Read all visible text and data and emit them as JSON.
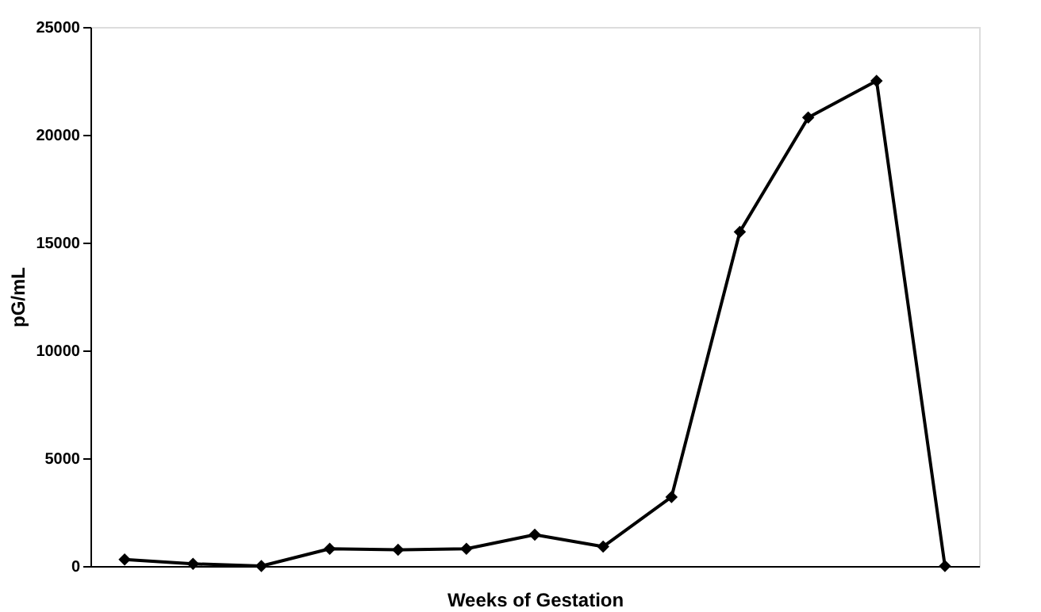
{
  "chart_data": {
    "type": "line",
    "xlabel": "Weeks of Gestation",
    "ylabel": "pG/mL",
    "categories": [
      null,
      null,
      null,
      null,
      null,
      null,
      null,
      null,
      null,
      null,
      null,
      null,
      null
    ],
    "series": [
      {
        "color": "#000000",
        "values": [
          300,
          100,
          0,
          800,
          750,
          800,
          1450,
          900,
          3200,
          15500,
          20800,
          22500,
          0
        ]
      }
    ],
    "ylim": [
      0,
      25000
    ],
    "yticks": [
      0,
      5000,
      10000,
      15000,
      20000,
      25000
    ],
    "grid": false,
    "legend": false,
    "marker": "diamond",
    "line_style": "solid"
  }
}
